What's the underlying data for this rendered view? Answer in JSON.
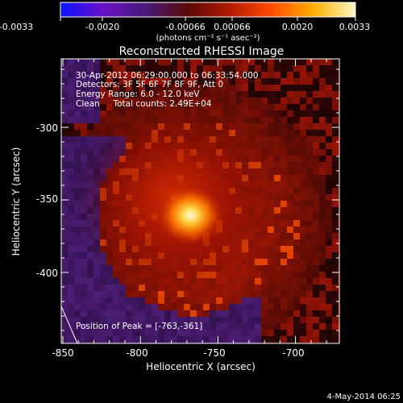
{
  "colorbar": {
    "tick_labels": [
      "-0.0033",
      "-0.0020",
      "-0.00066",
      "0.00066",
      "0.0020",
      "0.0033"
    ],
    "unit_label": "(photons cm⁻² s⁻¹ asec⁻²)",
    "gradient": [
      "#0a14ff",
      "#6a10c8",
      "#4a1a78",
      "#5a0a08",
      "#b01800",
      "#ff4a00",
      "#ffb000",
      "#fff6c8"
    ]
  },
  "title": "Reconstructed RHESSI Image",
  "info_lines": [
    "30-Apr-2012 06:29:00.000 to 06:33:54.000",
    "Detectors: 3F 5F 6F 7F 8F 9F, Att 0",
    "Energy Range: 6.0 - 12.0 keV",
    "Clean     Total counts: 2.49E+04"
  ],
  "peak_text": "Position of Peak = [-763,-361]",
  "axes": {
    "xlabel": "Heliocentric X (arcsec)",
    "ylabel": "Heliocentric Y (arcsec)",
    "x_ticks": [
      "-850",
      "-800",
      "-750",
      "-700"
    ],
    "y_ticks": [
      "-300",
      "-350",
      "-400"
    ]
  },
  "footer_date": "4-May-2014 06:25"
}
